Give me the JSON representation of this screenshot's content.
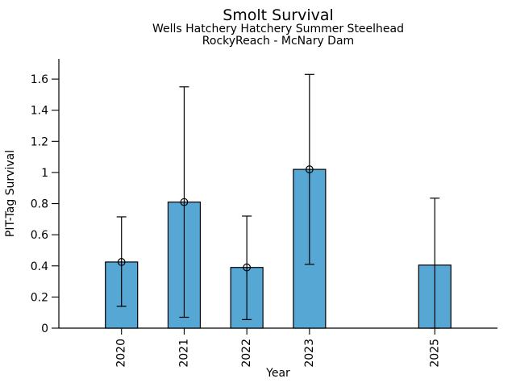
{
  "chart_data": {
    "type": "bar",
    "title": "Smolt Survival",
    "subtitle1": "Wells Hatchery Hatchery Summer Steelhead",
    "subtitle2": "RockyReach - McNary Dam",
    "xlabel": "Year",
    "ylabel": "PIT-Tag Survival",
    "categories": [
      "2020",
      "2021",
      "2022",
      "2023",
      "2025"
    ],
    "x_years": [
      2020,
      2021,
      2022,
      2023,
      2025
    ],
    "values": [
      0.425,
      0.81,
      0.39,
      1.02,
      0.405
    ],
    "error_low": [
      0.14,
      0.07,
      0.055,
      0.41,
      0.0
    ],
    "error_high": [
      0.715,
      1.55,
      0.72,
      1.63,
      0.835
    ],
    "marker_shown": [
      true,
      true,
      true,
      true,
      false
    ],
    "ytick_labels": [
      "0",
      "0.2",
      "0.4",
      "0.6",
      "0.8",
      "1",
      "1.2",
      "1.4",
      "1.6"
    ],
    "ytick_values": [
      0,
      0.2,
      0.4,
      0.6,
      0.8,
      1.0,
      1.2,
      1.4,
      1.6
    ],
    "ylim": [
      0,
      1.73
    ],
    "x_axis_range": [
      2019,
      2026
    ],
    "bar_color": "#57A7D5",
    "bar_edge_color": "#000000",
    "error_color": "#000000",
    "grid": false,
    "legend_position": "none"
  }
}
